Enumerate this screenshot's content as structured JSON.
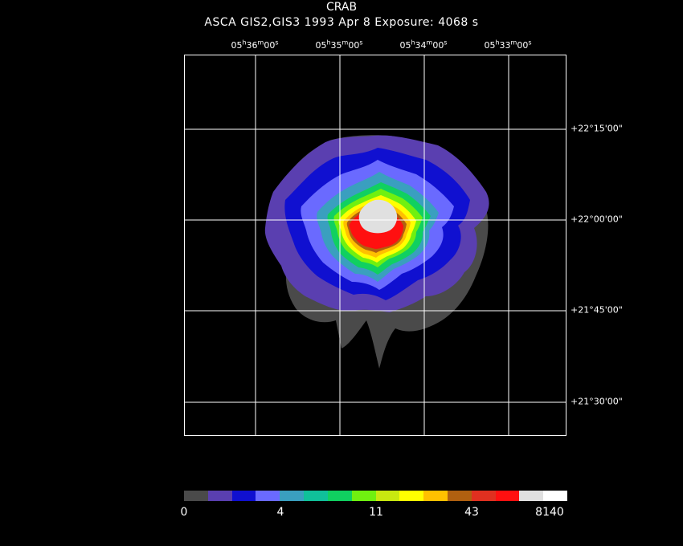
{
  "title": "CRAB",
  "subtitle": "ASCA GIS2,GIS3   1993 Apr  8    Exposure: 4068 s",
  "ra_ticks": [
    {
      "h": "05",
      "hs": "h",
      "m": "36",
      "ms": "m",
      "s": "00",
      "ss": "s"
    },
    {
      "h": "05",
      "hs": "h",
      "m": "35",
      "ms": "m",
      "s": "00",
      "ss": "s"
    },
    {
      "h": "05",
      "hs": "h",
      "m": "34",
      "ms": "m",
      "s": "00",
      "ss": "s"
    },
    {
      "h": "05",
      "hs": "h",
      "m": "33",
      "ms": "m",
      "s": "00",
      "ss": "s"
    }
  ],
  "dec_ticks": [
    "+22°15'00\"",
    "+22°00'00\"",
    "+21°45'00\"",
    "+21°30'00\""
  ],
  "colorbar": {
    "colors": [
      "#4a4a4a",
      "#5a3fb0",
      "#1010d0",
      "#6a6aff",
      "#3a9fbf",
      "#10c09a",
      "#10d060",
      "#70f010",
      "#c8e810",
      "#ffff00",
      "#ffc000",
      "#b06010",
      "#e03020",
      "#ff1010",
      "#e0e0e0",
      "#ffffff"
    ],
    "labels": [
      "0",
      "4",
      "11",
      "43",
      "8140"
    ]
  }
}
